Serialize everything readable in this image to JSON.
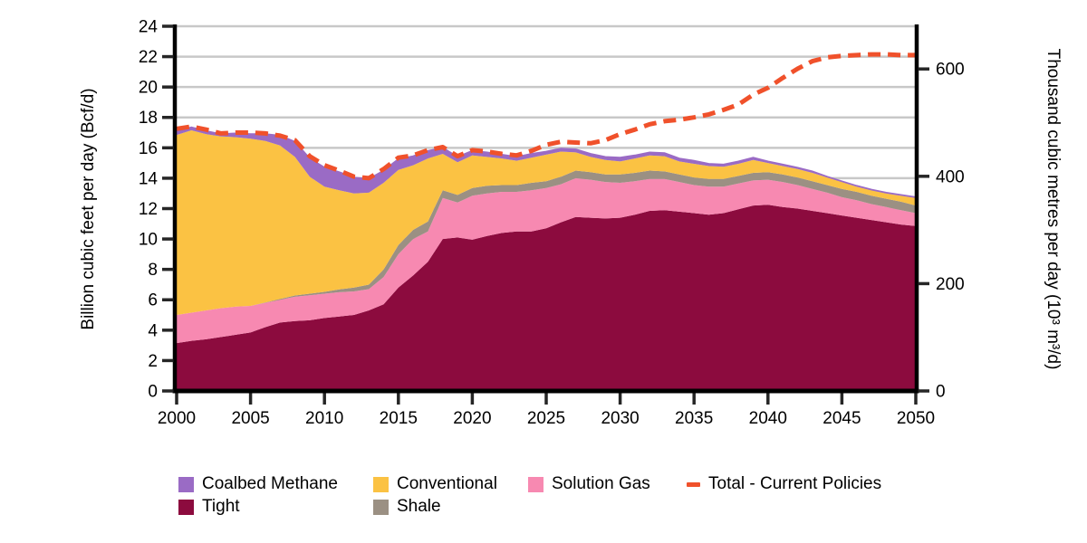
{
  "axes": {
    "left": {
      "title": "Billion cubic feet per day (Bcf/d)",
      "tick_values": [
        0,
        2,
        4,
        6,
        8,
        10,
        12,
        14,
        16,
        18,
        20,
        22,
        24
      ],
      "range": [
        0,
        24
      ]
    },
    "right": {
      "title": "Thousand cubic metres per day (10³ m³/d)",
      "tick_values": [
        0,
        200,
        400,
        600
      ],
      "bcf_to_e3m3_factor": 28.3168
    },
    "bottom": {
      "tick_values": [
        2000,
        2005,
        2010,
        2015,
        2020,
        2025,
        2030,
        2035,
        2040,
        2045,
        2050
      ],
      "range": [
        2000,
        2050
      ]
    }
  },
  "colors": {
    "tight": "#8C0B3E",
    "solution_gas": "#F789B1",
    "shale": "#9B9083",
    "conventional": "#FBC243",
    "coalbed_methane": "#9A6BC5",
    "total_line": "#F0512B",
    "grid": "#C8C8C8",
    "axis": "#000000",
    "tick": "#262626",
    "background": "#FFFFFF"
  },
  "chart_data": {
    "type": "area",
    "stacked": true,
    "grid": true,
    "legend_position": "bottom",
    "ylim_left": [
      0,
      24
    ],
    "ylim_right": [
      0,
      679.6
    ],
    "x": [
      2000,
      2001,
      2002,
      2003,
      2004,
      2005,
      2006,
      2007,
      2008,
      2009,
      2010,
      2011,
      2012,
      2013,
      2014,
      2015,
      2016,
      2017,
      2018,
      2019,
      2020,
      2021,
      2022,
      2023,
      2024,
      2025,
      2026,
      2027,
      2028,
      2029,
      2030,
      2031,
      2032,
      2033,
      2034,
      2035,
      2036,
      2037,
      2038,
      2039,
      2040,
      2041,
      2042,
      2043,
      2044,
      2045,
      2046,
      2047,
      2048,
      2049,
      2050
    ],
    "series": [
      {
        "name": "Tight",
        "color_key": "tight",
        "values": [
          3.15,
          3.3,
          3.4,
          3.55,
          3.7,
          3.85,
          4.2,
          4.5,
          4.6,
          4.65,
          4.8,
          4.9,
          5.0,
          5.3,
          5.7,
          6.8,
          7.6,
          8.5,
          10.0,
          10.1,
          9.95,
          10.2,
          10.4,
          10.5,
          10.5,
          10.7,
          11.1,
          11.45,
          11.4,
          11.35,
          11.4,
          11.6,
          11.85,
          11.9,
          11.8,
          11.7,
          11.6,
          11.7,
          11.95,
          12.2,
          12.25,
          12.1,
          12.0,
          11.85,
          11.7,
          11.55,
          11.4,
          11.25,
          11.1,
          10.95,
          10.85
        ]
      },
      {
        "name": "Solution Gas",
        "color_key": "solution_gas",
        "values": [
          1.85,
          1.85,
          1.9,
          1.9,
          1.85,
          1.75,
          1.6,
          1.5,
          1.6,
          1.65,
          1.6,
          1.6,
          1.55,
          1.4,
          1.8,
          2.2,
          2.4,
          2.0,
          2.7,
          2.3,
          2.9,
          2.8,
          2.7,
          2.6,
          2.7,
          2.65,
          2.5,
          2.55,
          2.5,
          2.4,
          2.3,
          2.2,
          2.1,
          2.05,
          1.95,
          1.85,
          1.85,
          1.75,
          1.7,
          1.65,
          1.65,
          1.65,
          1.55,
          1.45,
          1.35,
          1.2,
          1.15,
          1.05,
          1.0,
          0.95,
          0.85
        ]
      },
      {
        "name": "Shale",
        "color_key": "shale",
        "values": [
          0,
          0,
          0,
          0,
          0,
          0,
          0.02,
          0.05,
          0.08,
          0.1,
          0.12,
          0.18,
          0.25,
          0.3,
          0.5,
          0.6,
          0.6,
          0.65,
          0.5,
          0.5,
          0.5,
          0.5,
          0.45,
          0.45,
          0.5,
          0.45,
          0.5,
          0.5,
          0.5,
          0.5,
          0.55,
          0.55,
          0.55,
          0.5,
          0.5,
          0.5,
          0.5,
          0.5,
          0.5,
          0.5,
          0.5,
          0.5,
          0.5,
          0.5,
          0.5,
          0.55,
          0.55,
          0.55,
          0.55,
          0.55,
          0.5
        ]
      },
      {
        "name": "Conventional",
        "color_key": "conventional",
        "values": [
          11.85,
          12.0,
          11.6,
          11.3,
          11.15,
          11.0,
          10.63,
          10.1,
          9.12,
          7.7,
          6.93,
          6.52,
          6.2,
          6.05,
          5.7,
          4.95,
          4.25,
          4.15,
          2.4,
          2.15,
          2.15,
          1.9,
          1.75,
          1.6,
          1.65,
          1.75,
          1.65,
          1.2,
          1.0,
          0.95,
          0.85,
          0.95,
          1.0,
          1.0,
          0.85,
          0.9,
          0.85,
          0.8,
          0.8,
          0.85,
          0.6,
          0.55,
          0.55,
          0.55,
          0.5,
          0.45,
          0.35,
          0.35,
          0.35,
          0.4,
          0.5
        ]
      },
      {
        "name": "Coalbed Methane",
        "color_key": "coalbed_methane",
        "values": [
          0.25,
          0.2,
          0.2,
          0.15,
          0.25,
          0.3,
          0.45,
          0.65,
          1.0,
          1.2,
          1.25,
          1.2,
          1.05,
          0.9,
          0.8,
          0.7,
          0.6,
          0.5,
          0.4,
          0.35,
          0.3,
          0.3,
          0.25,
          0.25,
          0.25,
          0.2,
          0.2,
          0.2,
          0.2,
          0.2,
          0.25,
          0.2,
          0.2,
          0.2,
          0.2,
          0.2,
          0.15,
          0.15,
          0.15,
          0.15,
          0.1,
          0.1,
          0.1,
          0.1,
          0.05,
          0.05,
          0.05,
          0.05,
          0.05,
          0.05,
          0.05
        ]
      }
    ],
    "line": {
      "name": "Total - Current Policies",
      "color_key": "total_line",
      "style": "dashed",
      "values": [
        17.25,
        17.4,
        17.2,
        16.95,
        17.0,
        17.0,
        16.95,
        16.8,
        16.5,
        15.45,
        14.85,
        14.5,
        14.1,
        14.0,
        14.6,
        15.35,
        15.5,
        15.85,
        16.05,
        15.45,
        15.85,
        15.75,
        15.6,
        15.5,
        15.8,
        16.2,
        16.4,
        16.35,
        16.3,
        16.5,
        16.9,
        17.2,
        17.55,
        17.75,
        17.85,
        18.0,
        18.2,
        18.5,
        18.85,
        19.5,
        19.95,
        20.6,
        21.2,
        21.7,
        21.95,
        22.05,
        22.1,
        22.15,
        22.15,
        22.1,
        22.1
      ]
    }
  },
  "legend": {
    "rows": [
      [
        {
          "label": "Coalbed Methane",
          "swatch": "#9A6BC5",
          "type": "box"
        },
        {
          "label": "Conventional",
          "swatch": "#FBC243",
          "type": "box"
        },
        {
          "label": "Solution Gas",
          "swatch": "#F789B1",
          "type": "box"
        },
        {
          "label": "Total - Current Policies",
          "swatch": "#F0512B",
          "type": "dash"
        }
      ],
      [
        {
          "label": "Tight",
          "swatch": "#8C0B3E",
          "type": "box"
        },
        {
          "label": "Shale",
          "swatch": "#9B9083",
          "type": "box"
        }
      ]
    ]
  }
}
